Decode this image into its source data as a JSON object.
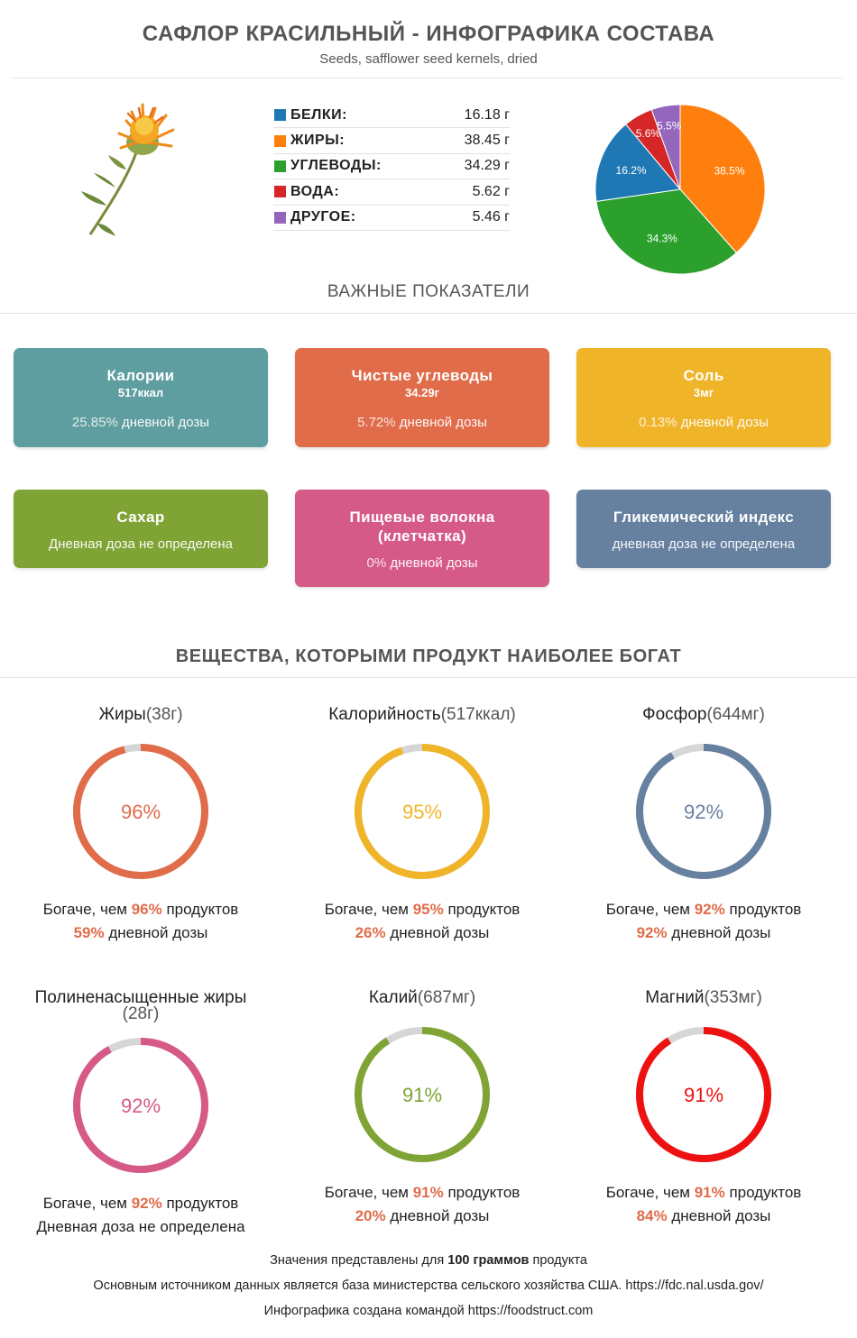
{
  "header": {
    "title": "САФЛОР КРАСИЛЬНЫЙ - ИНФОГРАФИКА СОСТАВА",
    "subtitle": "Seeds, safflower seed kernels, dried"
  },
  "macros": [
    {
      "name": "БЕЛКИ:",
      "value": "16.18 г",
      "color": "#1f77b4"
    },
    {
      "name": "ЖИРЫ:",
      "value": "38.45 г",
      "color": "#ff7f0e"
    },
    {
      "name": "УГЛЕВОДЫ:",
      "value": "34.29 г",
      "color": "#2ca02c"
    },
    {
      "name": "ВОДА:",
      "value": "5.62 г",
      "color": "#d62728"
    },
    {
      "name": "ДРУГОЕ:",
      "value": "5.46 г",
      "color": "#9467bd"
    }
  ],
  "chart_data": {
    "type": "pie",
    "slices": [
      {
        "label": "БЕЛКИ",
        "value": 16.2,
        "display": "16.2%",
        "color": "#1f77b4"
      },
      {
        "label": "ЖИРЫ",
        "value": 38.5,
        "display": "38.5%",
        "color": "#ff7f0e"
      },
      {
        "label": "УГЛЕВОДЫ",
        "value": 34.3,
        "display": "34.3%",
        "color": "#2ca02c"
      },
      {
        "label": "ВОДА",
        "value": 5.6,
        "display": "5.6%",
        "color": "#d62728"
      },
      {
        "label": "ДРУГОЕ",
        "value": 5.5,
        "display": "5.5%",
        "color": "#9467bd"
      }
    ],
    "order_clockwise_from_top": [
      "ЖИРЫ",
      "УГЛЕВОДЫ",
      "БЕЛКИ",
      "ВОДА",
      "ДРУГОЕ"
    ]
  },
  "indicators_heading": "ВАЖНЫЕ ПОКАЗАТЕЛИ",
  "cards": [
    {
      "title": "Калории",
      "value": "517ккал",
      "pct": "25.85%",
      "daily": " дневной дозы",
      "color": "#5f9ea0"
    },
    {
      "title": "Чистые углеводы",
      "value": "34.29г",
      "pct": "5.72%",
      "daily": " дневной дозы",
      "color": "#e06c4a"
    },
    {
      "title": "Соль",
      "value": "3мг",
      "pct": "0.13%",
      "daily": " дневной дозы",
      "color": "#f0b429"
    },
    {
      "title": "Сахар",
      "value": "",
      "pct": "",
      "daily": "Дневная доза не определена",
      "color": "#7fa334"
    },
    {
      "title": "Пищевые волокна (клетчатка)",
      "value": "",
      "pct": "0%",
      "daily": " дневной дозы",
      "color": "#d65a87"
    },
    {
      "title": "Гликемический индекс",
      "value": "",
      "pct": "",
      "daily": "дневная доза не определена",
      "color": "#66809f"
    }
  ],
  "rich_heading": "ВЕЩЕСТВА, КОТОРЫМИ ПРОДУКТ НАИБОЛЕЕ БОГАТ",
  "nutrients": [
    {
      "name": "Жиры",
      "amount": "(38г)",
      "percent": 96,
      "percent_label": "96%",
      "richer_prefix": "Богаче, чем ",
      "richer_pct": "96%",
      "richer_suffix": " продуктов",
      "daily_pct": "59%",
      "daily_suffix": " дневной дозы",
      "color": "#e06c4a"
    },
    {
      "name": "Калорийность",
      "amount": "(517ккал)",
      "percent": 95,
      "percent_label": "95%",
      "richer_prefix": "Богаче, чем ",
      "richer_pct": "95%",
      "richer_suffix": " продуктов",
      "daily_pct": "26%",
      "daily_suffix": " дневной дозы",
      "color": "#f0b429"
    },
    {
      "name": "Фосфор",
      "amount": "(644мг)",
      "percent": 92,
      "percent_label": "92%",
      "richer_prefix": "Богаче, чем ",
      "richer_pct": "92%",
      "richer_suffix": " продуктов",
      "daily_pct": "92%",
      "daily_suffix": " дневной дозы",
      "color": "#66809f"
    },
    {
      "name": "Полиненасыщенные жиры",
      "amount": "(28г)",
      "percent": 92,
      "percent_label": "92%",
      "richer_prefix": "Богаче, чем ",
      "richer_pct": "92%",
      "richer_suffix": " продуктов",
      "daily_pct": "",
      "daily_suffix": "Дневная доза не определена",
      "color": "#d65a87"
    },
    {
      "name": "Калий",
      "amount": "(687мг)",
      "percent": 91,
      "percent_label": "91%",
      "richer_prefix": "Богаче, чем ",
      "richer_pct": "91%",
      "richer_suffix": " продуктов",
      "daily_pct": "20%",
      "daily_suffix": " дневной дозы",
      "color": "#7fa334"
    },
    {
      "name": "Магний",
      "amount": "(353мг)",
      "percent": 91,
      "percent_label": "91%",
      "richer_prefix": "Богаче, чем ",
      "richer_pct": "91%",
      "richer_suffix": " продуктов",
      "daily_pct": "84%",
      "daily_suffix": " дневной дозы",
      "color": "#ee1111"
    }
  ],
  "footer": {
    "line1_prefix": "Значения представлены для ",
    "line1_bold": "100 граммов",
    "line1_suffix": " продукта",
    "line2": "Основным источником данных является база министерства сельского хозяйства США. https://fdc.nal.usda.gov/",
    "line3": "Инфографика создана командой https://foodstruct.com"
  }
}
